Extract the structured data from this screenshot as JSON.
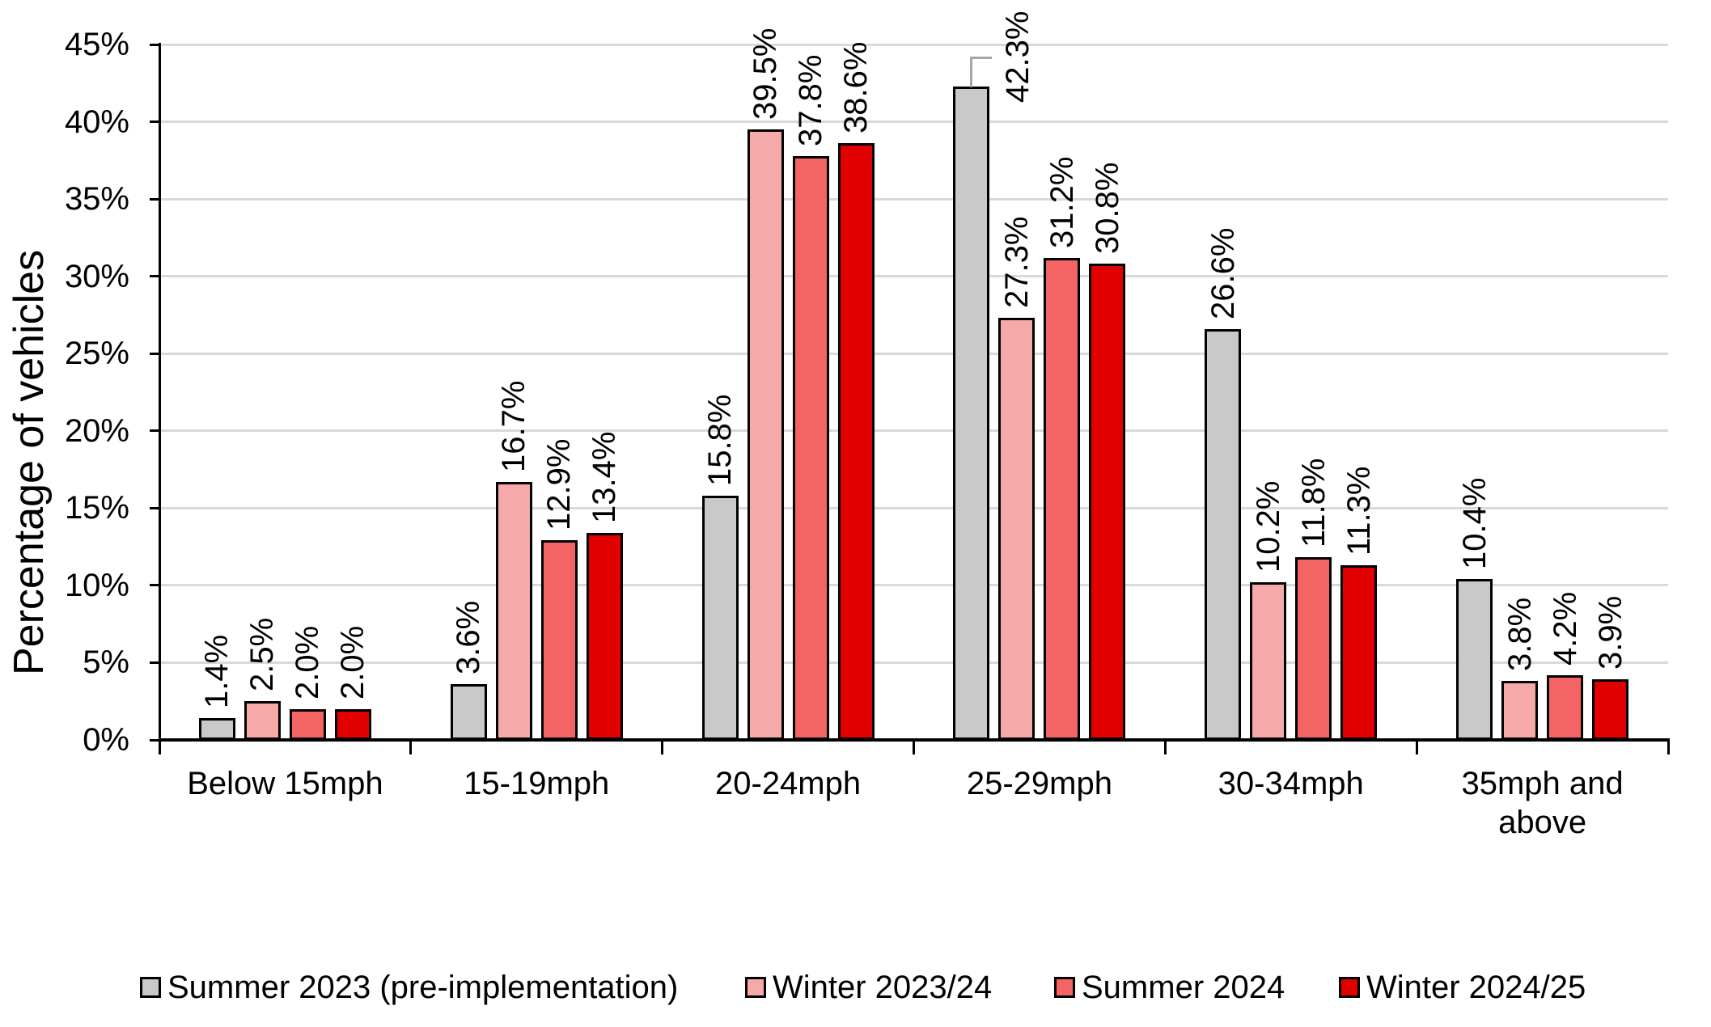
{
  "chart_data": {
    "type": "bar",
    "title": "",
    "xlabel": "",
    "ylabel": "Percentage of vehicles",
    "categories": [
      "Below 15mph",
      "15-19mph",
      "20-24mph",
      "25-29mph",
      "30-34mph",
      "35mph and above"
    ],
    "series": [
      {
        "name": "Summer 2023 (pre-implementation)",
        "color": "#C9C9C9",
        "values": [
          1.4,
          3.6,
          15.8,
          42.3,
          26.6,
          10.4
        ]
      },
      {
        "name": "Winter 2023/24",
        "color": "#F5A9A9",
        "values": [
          2.5,
          16.7,
          39.5,
          27.3,
          10.2,
          3.8
        ]
      },
      {
        "name": "Summer 2024",
        "color": "#F56464",
        "values": [
          2.0,
          12.9,
          37.8,
          31.2,
          11.8,
          4.2
        ]
      },
      {
        "name": "Winter 2024/25",
        "color": "#E00000",
        "values": [
          2.0,
          13.4,
          38.6,
          30.8,
          11.3,
          3.9
        ]
      }
    ],
    "ylim": [
      0,
      45
    ],
    "ytick_step": 5,
    "ytick_suffix": "%",
    "ytick_labels": [
      "0%",
      "5%",
      "10%",
      "15%",
      "20%",
      "25%",
      "30%",
      "35%",
      "40%",
      "45%"
    ],
    "grid": true,
    "legend_position": "bottom",
    "value_label_decimals": 1,
    "value_label_suffix": "%",
    "value_label_rotation_deg": -90,
    "bar_outline_color": "#000000",
    "gridline_color": "#D9D9D9",
    "axis_color": "#000000",
    "text_color": "#000000",
    "background_color": "#FFFFFF",
    "callout": {
      "series_index": 0,
      "category_index": 3,
      "label": "42.3%",
      "leader_color": "#A6A6A6",
      "description": "label shifted right of bar top with bent gray leader line"
    }
  }
}
